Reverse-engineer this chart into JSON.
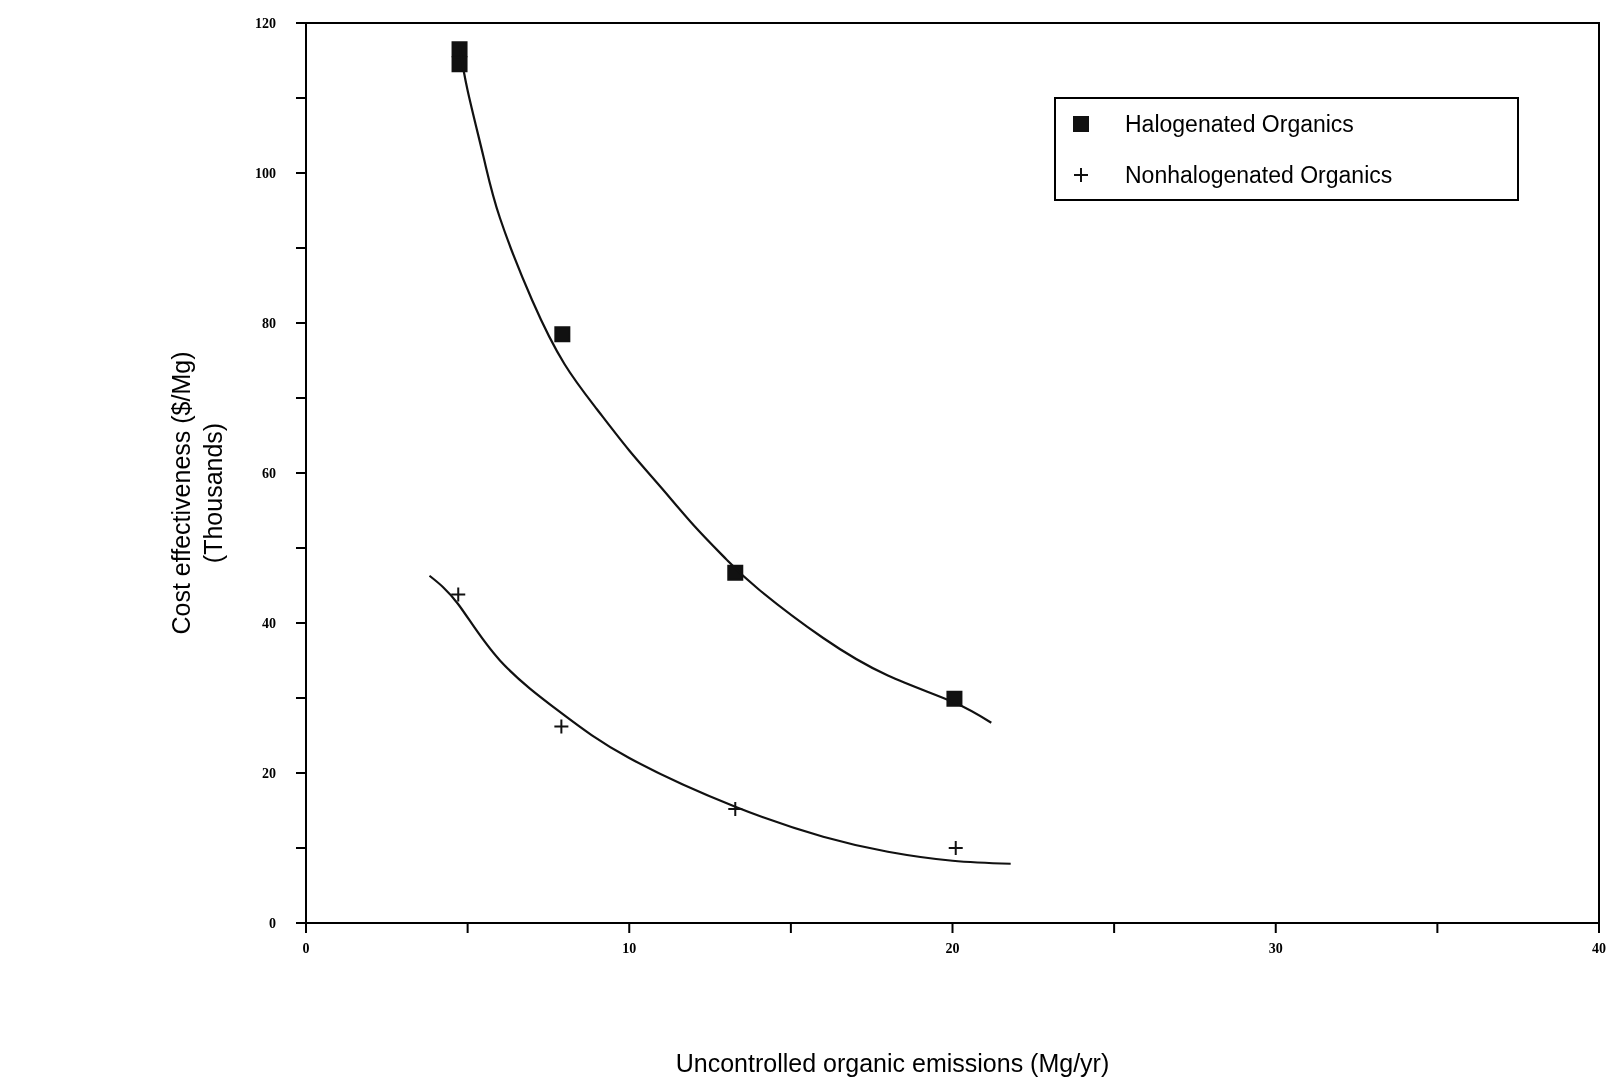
{
  "chart_data": {
    "type": "scatter",
    "xlabel": "Uncontrolled organic emissions (Mg/yr)",
    "ylabel": "Cost effectiveness ($/Mg)\n(Thousands)",
    "xlim": [
      0,
      40
    ],
    "ylim": [
      0,
      120
    ],
    "xticks": [
      0,
      {
        "value": 5,
        "label": null
      },
      10,
      {
        "value": 15,
        "label": null
      },
      20,
      {
        "value": 25,
        "label": null
      },
      30,
      {
        "value": 35,
        "label": null
      },
      40
    ],
    "yticks": [
      0,
      {
        "value": 10,
        "label": null
      },
      20,
      {
        "value": 30,
        "label": null
      },
      40,
      {
        "value": 50,
        "label": null
      },
      60,
      {
        "value": 70,
        "label": null
      },
      80,
      {
        "value": 90,
        "label": null
      },
      100,
      {
        "value": 110,
        "label": null
      },
      120
    ],
    "grid": false,
    "legend": "top right",
    "series": [
      {
        "name": "Halogenated Organics",
        "type": "scatter",
        "marker": "square",
        "color": "#111111",
        "x": [
          4.75,
          4.75,
          7.93,
          13.28,
          20.06
        ],
        "values": [
          116.5,
          114.5,
          78.5,
          46.7,
          29.9
        ]
      },
      {
        "name": "Nonhalogenated Organics",
        "type": "scatter",
        "marker": "cross",
        "color": "#111111",
        "x": [
          4.71,
          7.9,
          13.28,
          20.1
        ],
        "values": [
          43.8,
          26.2,
          15.2,
          10.0
        ]
      },
      {
        "type": "line",
        "marker": "none",
        "color": "#111111",
        "x": [
          4.75,
          5,
          5.5,
          6,
          7,
          8,
          9,
          10,
          11,
          12,
          13,
          14,
          16,
          18,
          20,
          21.2
        ],
        "values": [
          117,
          111,
          102,
          94,
          83,
          74.5,
          68.5,
          63,
          58,
          53,
          48.5,
          44.5,
          38,
          33,
          29.5,
          26.7
        ]
      },
      {
        "type": "line",
        "marker": "none",
        "color": "#111111",
        "x": [
          3.82,
          4.71,
          6,
          7.9,
          10,
          13.28,
          16,
          18,
          20,
          21.8
        ],
        "values": [
          46.3,
          42.5,
          35,
          28,
          22,
          15.5,
          11.5,
          9.5,
          8.3,
          7.9
        ]
      }
    ]
  }
}
